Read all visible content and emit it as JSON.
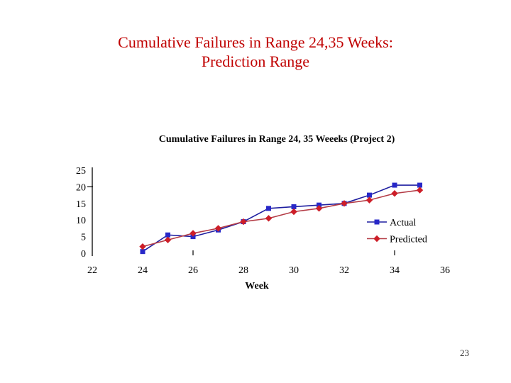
{
  "title": {
    "line1": "Cumulative Failures in Range 24,35 Weeks:",
    "line2": "Prediction Range"
  },
  "colors": {
    "slide_title": "#C00000",
    "axis_text": "#000000"
  },
  "page_number": "23",
  "chart_data": {
    "type": "line",
    "title": "Cumulative Failures in Range 24, 35 Weeeks (Project 2)",
    "xlabel": "Week",
    "ylabel": "",
    "x": [
      24,
      25,
      26,
      27,
      28,
      29,
      30,
      31,
      32,
      33,
      34,
      35
    ],
    "series": [
      {
        "name": "Actual",
        "marker": "square",
        "line_color": "#1E1EA0",
        "marker_color": "#2828C8",
        "values": [
          0.5,
          5.5,
          5,
          7,
          9.5,
          13.5,
          14,
          14.5,
          15,
          17.5,
          20.5,
          20.5
        ]
      },
      {
        "name": "Predicted",
        "marker": "diamond",
        "line_color": "#B43C46",
        "marker_color": "#CD1E28",
        "values": [
          2,
          4,
          6,
          7.5,
          9.5,
          10.5,
          12.5,
          13.5,
          15,
          16,
          18,
          19
        ]
      }
    ],
    "xlim": [
      22,
      36
    ],
    "ylim": [
      0,
      25
    ],
    "xticks": [
      22,
      24,
      26,
      28,
      30,
      32,
      34,
      36
    ],
    "yticks": [
      0,
      5,
      10,
      15,
      20,
      25
    ],
    "visible_tick_marks": {
      "x": [
        26,
        34
      ],
      "y": [
        20
      ]
    },
    "grid": false,
    "legend_position": "inside-right-bottom",
    "legend": [
      "Actual",
      "Predicted"
    ]
  }
}
